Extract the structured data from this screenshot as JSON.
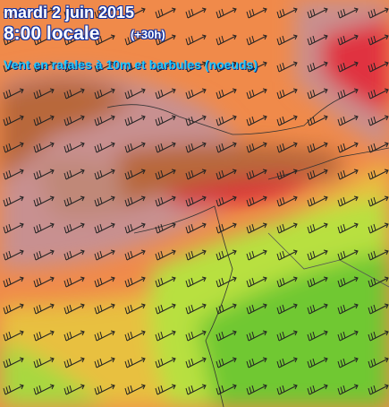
{
  "header": {
    "date": "mardi 2 juin 2015",
    "time": "8:00 locale",
    "offset": "(+30h)",
    "subtitle": "Vent en rafales à 10m et barbules (noeuds)"
  }
}
